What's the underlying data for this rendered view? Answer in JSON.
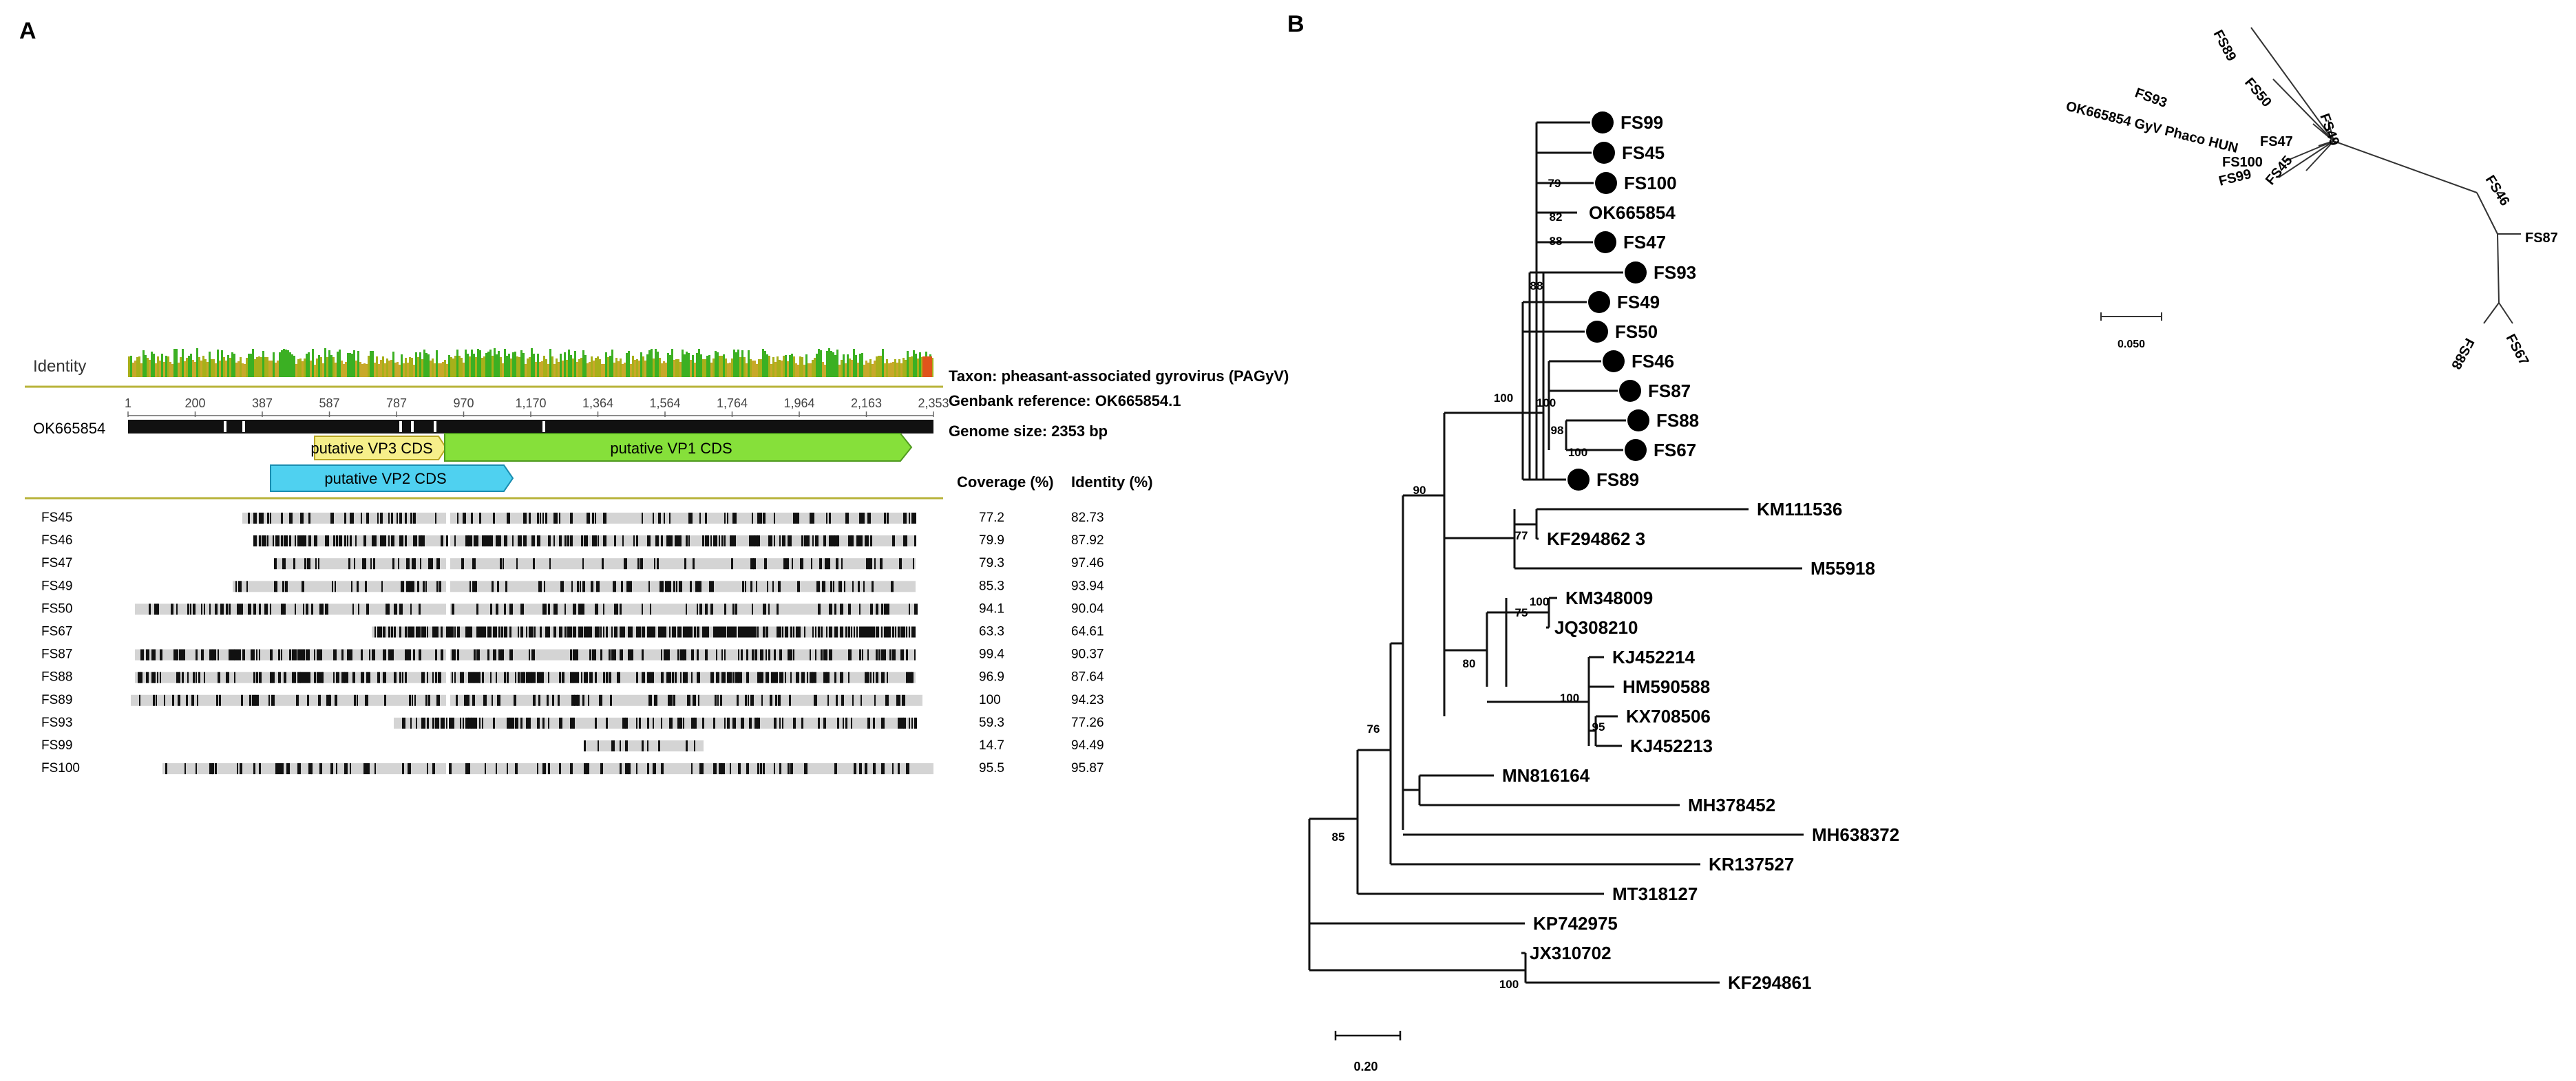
{
  "panel_a": {
    "label": "A",
    "identity_label": "Identity",
    "reference_track_label": "OK665854",
    "ruler_ticks": [
      "1",
      "200",
      "387",
      "587",
      "787",
      "970",
      "1,170",
      "1,364",
      "1,564",
      "1,764",
      "1,964",
      "2,163",
      "2,353"
    ],
    "annotations": [
      {
        "name": "vp3",
        "label": "putative VP3 CDS",
        "color": "#f6ef8a"
      },
      {
        "name": "vp1",
        "label": "putative VP1 CDS",
        "color": "#86e03a"
      },
      {
        "name": "vp2",
        "label": "putative VP2 CDS",
        "color": "#4fd1f0"
      }
    ],
    "info": {
      "taxon": "Taxon: pheasant-associated gyrovirus (PAGyV)",
      "genbank": "Genbank reference: OK665854.1",
      "genome_size": "Genome size: 2353 bp"
    },
    "coverage_header": "Coverage (%)",
    "identity_header": "Identity (%)",
    "rows": [
      {
        "name": "FS45",
        "coverage": "77.2",
        "identity": "82.73"
      },
      {
        "name": "FS46",
        "coverage": "79.9",
        "identity": "87.92"
      },
      {
        "name": "FS47",
        "coverage": "79.3",
        "identity": "97.46"
      },
      {
        "name": "FS49",
        "coverage": "85.3",
        "identity": "93.94"
      },
      {
        "name": "FS50",
        "coverage": "94.1",
        "identity": "90.04"
      },
      {
        "name": "FS67",
        "coverage": "63.3",
        "identity": "64.61"
      },
      {
        "name": "FS87",
        "coverage": "99.4",
        "identity": "90.37"
      },
      {
        "name": "FS88",
        "coverage": "96.9",
        "identity": "87.64"
      },
      {
        "name": "FS89",
        "coverage": "100",
        "identity": "94.23"
      },
      {
        "name": "FS93",
        "coverage": "59.3",
        "identity": "77.26"
      },
      {
        "name": "FS99",
        "coverage": "14.7",
        "identity": "94.49"
      },
      {
        "name": "FS100",
        "coverage": "95.5",
        "identity": "95.87"
      }
    ]
  },
  "panel_b": {
    "label": "B",
    "tree_leaves": [
      "FS99",
      "FS45",
      "FS100",
      "OK665854",
      "FS47",
      "FS93",
      "FS49",
      "FS50",
      "FS46",
      "FS87",
      "FS88",
      "FS67",
      "FS89",
      "KM111536",
      "KF294862 3",
      "M55918",
      "KM348009",
      "JQ308210",
      "KJ452214",
      "HM590588",
      "KX708506",
      "KJ452213",
      "MN816164",
      "MH378452",
      "MH638372",
      "KR137527",
      "MT318127",
      "KP742975",
      "JX310702",
      "KF294861"
    ],
    "marked_leaves": [
      "FS99",
      "FS45",
      "FS100",
      "FS47",
      "FS93",
      "FS49",
      "FS50",
      "FS46",
      "FS87",
      "FS88",
      "FS67",
      "FS89"
    ],
    "bootstrap_values": [
      "79",
      "82",
      "88",
      "88",
      "100",
      "100",
      "98",
      "100",
      "90",
      "77",
      "75",
      "100",
      "80",
      "100",
      "95",
      "76",
      "85",
      "100"
    ],
    "tree_scale": "0.20",
    "unrooted_labels": [
      "FS89",
      "FS50",
      "FS93",
      "OK665854 GyV Phaco HUN",
      "FS49",
      "FS47",
      "FS100",
      "FS99",
      "FS45",
      "FS46",
      "FS87",
      "FS67",
      "FS88"
    ],
    "unrooted_scale": "0.050"
  }
}
